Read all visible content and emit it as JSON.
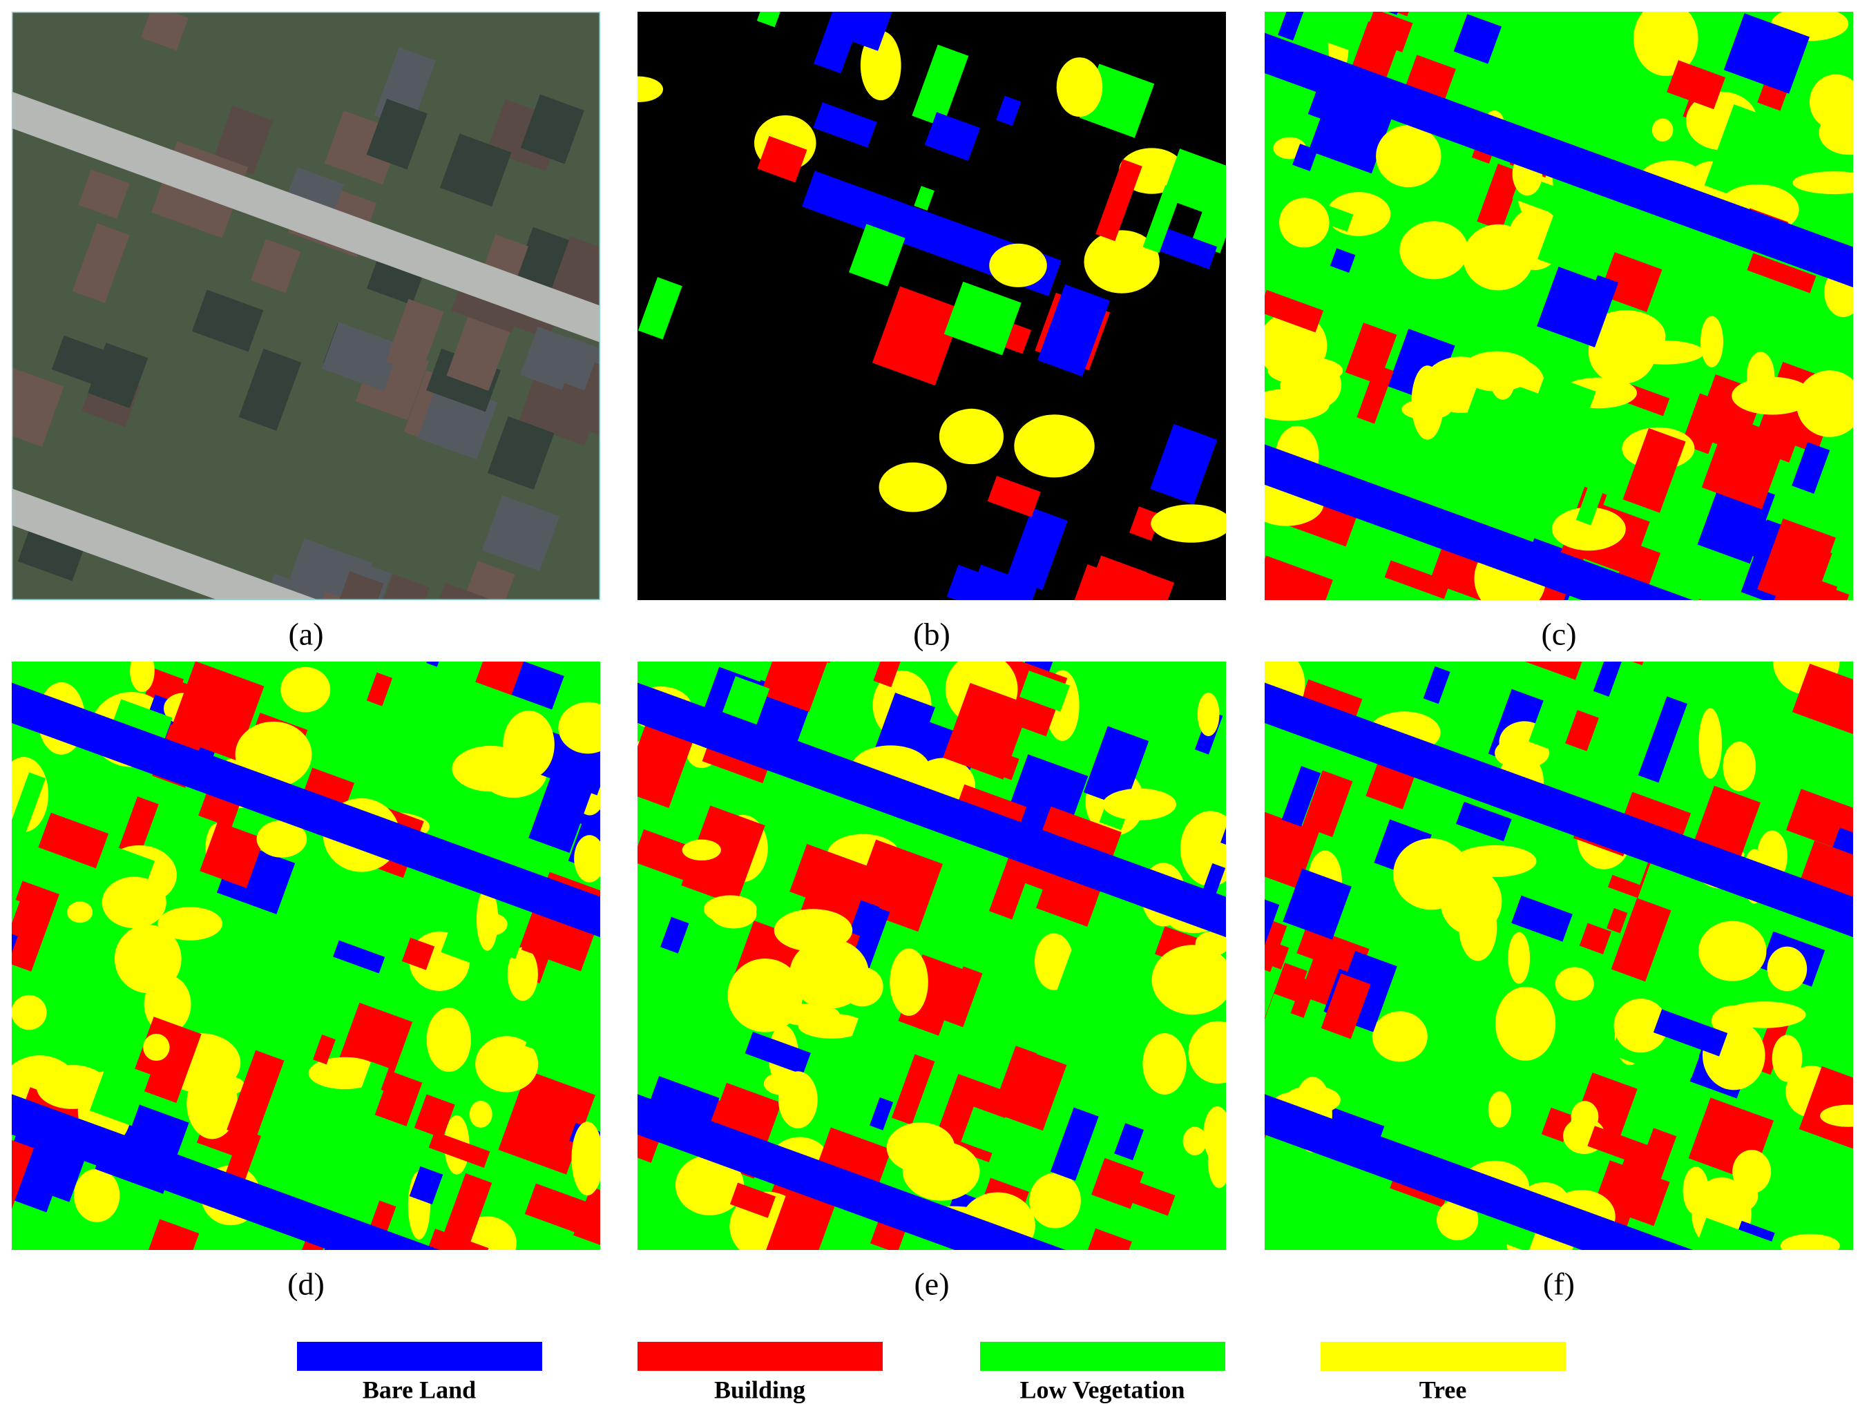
{
  "panels": [
    {
      "caption": "(a)",
      "kind": "aerial"
    },
    {
      "caption": "(b)",
      "kind": "ground-truth"
    },
    {
      "caption": "(c)",
      "kind": "prediction"
    },
    {
      "caption": "(d)",
      "kind": "prediction"
    },
    {
      "caption": "(e)",
      "kind": "prediction"
    },
    {
      "caption": "(f)",
      "kind": "prediction"
    }
  ],
  "legend": [
    {
      "label": "Bare Land",
      "color": "#0000ff"
    },
    {
      "label": "Building",
      "color": "#ff0000"
    },
    {
      "label": "Low Vegetation",
      "color": "#00ff00"
    },
    {
      "label": "Tree",
      "color": "#ffff00"
    }
  ]
}
